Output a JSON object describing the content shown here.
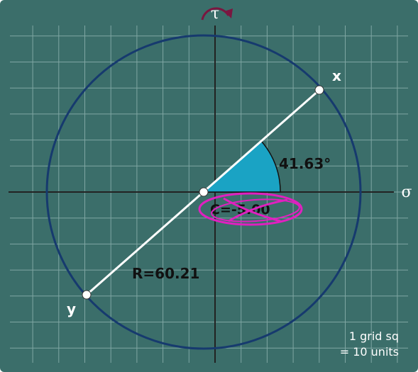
{
  "axes": {
    "tau": "τ",
    "sigma": "σ"
  },
  "points": {
    "x": "x",
    "y": "y"
  },
  "labels": {
    "angle": "41.63°",
    "center": "C=-5.00",
    "radius": "R=60.21"
  },
  "legend": {
    "line1": "1 grid sq",
    "line2": "= 10 units"
  }
}
